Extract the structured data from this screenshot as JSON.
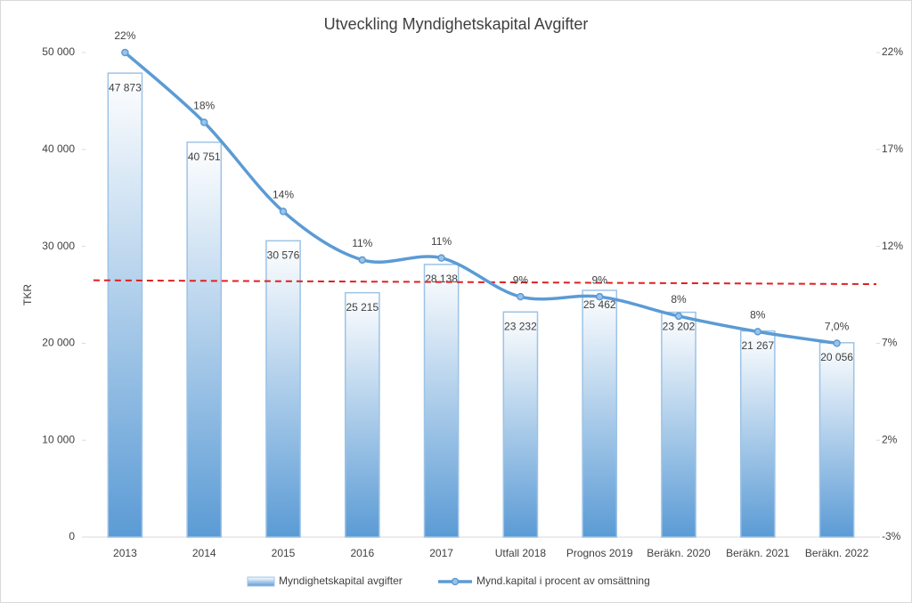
{
  "chart_data": {
    "type": "bar_line",
    "title": "Utveckling Myndighetskapital Avgifter",
    "y_label": "TKR",
    "categories": [
      "2013",
      "2014",
      "2015",
      "2016",
      "2017",
      "Utfall 2018",
      "Prognos 2019",
      "Beräkn. 2020",
      "Beräkn. 2021",
      "Beräkn. 2022"
    ],
    "series": [
      {
        "name": "Myndighetskapital avgifter",
        "type": "bar",
        "color": "#5b9bd5",
        "values": [
          47873,
          40751,
          30576,
          25215,
          28138,
          23232,
          25462,
          23202,
          21267,
          20056
        ],
        "value_labels": [
          "47 873",
          "40 751",
          "30 576",
          "25 215",
          "28 138",
          "23 232",
          "25 462",
          "23 202",
          "21 267",
          "20 056"
        ]
      },
      {
        "name": "Mynd.kapital i procent av omsättning",
        "type": "line",
        "axis": "y2",
        "color": "#5b9bd5",
        "values": [
          22,
          18.4,
          13.8,
          11.3,
          11.4,
          9.4,
          9.4,
          8.4,
          7.6,
          7.0
        ],
        "value_labels": [
          "22%",
          "18%",
          "14%",
          "11%",
          "11%",
          "9%",
          "9%",
          "8%",
          "8%",
          "7,0%"
        ]
      }
    ],
    "threshold": {
      "start": 26500,
      "end": 26100,
      "color": "#e02020"
    },
    "ylim": [
      0,
      50000
    ],
    "yticks": [
      0,
      {
        "value": 10000,
        "label": "10 000"
      },
      {
        "value": 20000,
        "label": "20 000"
      },
      {
        "value": 30000,
        "label": "30 000"
      },
      {
        "value": 40000,
        "label": "40 000"
      },
      {
        "value": 50000,
        "label": "50 000"
      }
    ],
    "y2lim": [
      -3,
      22
    ],
    "y2ticks": [
      {
        "value": -3,
        "label": "-3%"
      },
      {
        "value": 2,
        "label": "2%"
      },
      {
        "value": 7,
        "label": "7%"
      },
      {
        "value": 12,
        "label": "12%"
      },
      {
        "value": 17,
        "label": "17%"
      },
      {
        "value": 22,
        "label": "22%"
      }
    ],
    "legend": "bottom"
  }
}
